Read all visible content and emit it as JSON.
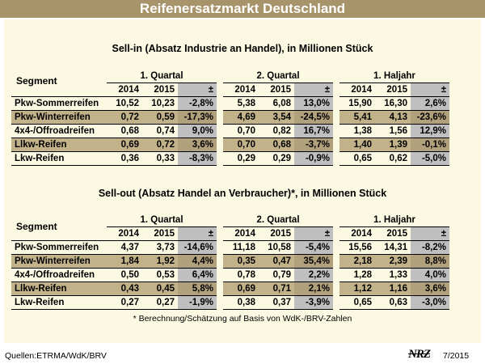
{
  "title": "Reifenersatzmarkt Deutschland",
  "segment_header": "Segment",
  "periods": [
    "1. Quartal",
    "2. Quartal",
    "1. Haljahr"
  ],
  "years": [
    "2014",
    "2015",
    "±"
  ],
  "sell_in": {
    "title": "Sell-in (Absatz Industrie an Handel), in Millionen Stück",
    "rows": [
      {
        "label": "Pkw-Sommerreifen",
        "q1": [
          "10,52",
          "10,23",
          "-2,8%"
        ],
        "q2": [
          "5,38",
          "6,08",
          "13,0%"
        ],
        "h1": [
          "15,90",
          "16,30",
          "2,6%"
        ]
      },
      {
        "label": "Pkw-Winterreifen",
        "q1": [
          "0,72",
          "0,59",
          "-17,3%"
        ],
        "q2": [
          "4,69",
          "3,54",
          "-24,5%"
        ],
        "h1": [
          "5,41",
          "4,13",
          "-23,6%"
        ]
      },
      {
        "label": "4x4-/Offroadreifen",
        "q1": [
          "0,68",
          "0,74",
          "9,0%"
        ],
        "q2": [
          "0,70",
          "0,82",
          "16,7%"
        ],
        "h1": [
          "1,38",
          "1,56",
          "12,9%"
        ]
      },
      {
        "label": "Llkw-Reifen",
        "q1": [
          "0,69",
          "0,72",
          "3,6%"
        ],
        "q2": [
          "0,70",
          "0,68",
          "-3,7%"
        ],
        "h1": [
          "1,40",
          "1,39",
          "-0,1%"
        ]
      },
      {
        "label": "Lkw-Reifen",
        "q1": [
          "0,36",
          "0,33",
          "-8,3%"
        ],
        "q2": [
          "0,29",
          "0,29",
          "-0,9%"
        ],
        "h1": [
          "0,65",
          "0,62",
          "-5,0%"
        ]
      }
    ]
  },
  "sell_out": {
    "title": "Sell-out (Absatz Handel an Verbraucher)*, in Millionen Stück",
    "rows": [
      {
        "label": "Pkw-Sommerreifen",
        "q1": [
          "4,37",
          "3,73",
          "-14,6%"
        ],
        "q2": [
          "11,18",
          "10,58",
          "-5,4%"
        ],
        "h1": [
          "15,56",
          "14,31",
          "-8,2%"
        ]
      },
      {
        "label": "Pkw-Winterreifen",
        "q1": [
          "1,84",
          "1,92",
          "4,4%"
        ],
        "q2": [
          "0,35",
          "0,47",
          "35,4%"
        ],
        "h1": [
          "2,18",
          "2,39",
          "8,8%"
        ]
      },
      {
        "label": "4x4-/Offroadreifen",
        "q1": [
          "0,50",
          "0,53",
          "6,4%"
        ],
        "q2": [
          "0,78",
          "0,79",
          "2,2%"
        ],
        "h1": [
          "1,28",
          "1,33",
          "4,0%"
        ]
      },
      {
        "label": "Llkw-Reifen",
        "q1": [
          "0,43",
          "0,45",
          "5,8%"
        ],
        "q2": [
          "0,69",
          "0,71",
          "2,1%"
        ],
        "h1": [
          "1,12",
          "1,16",
          "3,6%"
        ]
      },
      {
        "label": "Lkw-Reifen",
        "q1": [
          "0,27",
          "0,27",
          "-1,9%"
        ],
        "q2": [
          "0,38",
          "0,37",
          "-3,9%"
        ],
        "h1": [
          "0,65",
          "0,63",
          "-3,0%"
        ]
      }
    ]
  },
  "footnote": "* Berechnung/Schätzung auf Basis von WdK-/BRV-Zahlen",
  "source": "Quellen:ETRMA/WdK/BRV",
  "logo": "NRZ",
  "date": "7/2015",
  "colors": {
    "title_bg": "#a8946a",
    "panel_bg": "#fcf9e3",
    "shade_row": "#c2b28a",
    "pm_col": "#bfbfbf"
  }
}
